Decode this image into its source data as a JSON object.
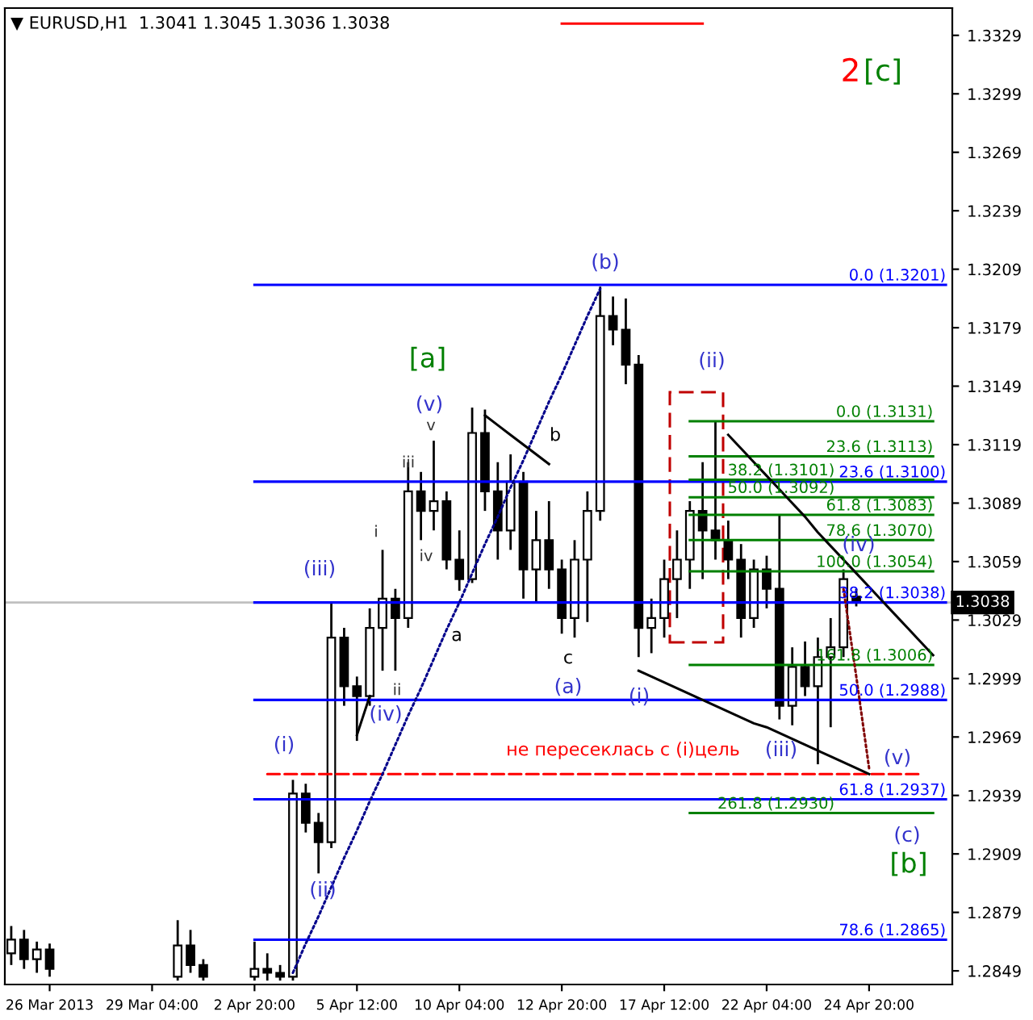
{
  "chart_data": {
    "type": "candlestick",
    "title": "▼ EURUSD,H1  1.3041 1.3045 1.3036 1.3038",
    "color": "#000000",
    "categories": [
      null,
      null,
      null,
      "26 Mar 2013",
      null,
      null,
      null,
      null,
      null,
      null,
      null,
      "29 Mar 04:00",
      null,
      null,
      null,
      null,
      null,
      null,
      null,
      "2 Apr 20:00",
      null,
      null,
      null,
      null,
      null,
      null,
      null,
      "5 Apr 12:00",
      null,
      null,
      null,
      null,
      null,
      null,
      null,
      "10 Apr 04:00",
      null,
      null,
      null,
      null,
      null,
      null,
      null,
      "12 Apr 20:00",
      null,
      null,
      null,
      null,
      null,
      null,
      null,
      "17 Apr 12:00",
      null,
      null,
      null,
      null,
      null,
      null,
      null,
      "22 Apr 04:00",
      null,
      null,
      null,
      null,
      null,
      null,
      null,
      "24 Apr 20:00",
      null,
      null,
      null,
      null,
      null,
      null
    ],
    "ohlc": [
      [
        1.2858,
        1.2872,
        1.2852,
        1.2865
      ],
      [
        1.2865,
        1.287,
        1.285,
        1.2855
      ],
      [
        1.2855,
        1.2864,
        1.2848,
        1.286
      ],
      [
        1.286,
        1.2863,
        1.2846,
        1.285
      ],
      null,
      null,
      null,
      null,
      null,
      null,
      null,
      null,
      null,
      [
        1.2846,
        1.2875,
        1.2844,
        1.2862
      ],
      [
        1.2862,
        1.287,
        1.2848,
        1.2852
      ],
      [
        1.2852,
        1.2855,
        1.2844,
        1.2846
      ],
      null,
      null,
      null,
      [
        1.2846,
        1.2864,
        1.2844,
        1.285
      ],
      [
        1.285,
        1.2858,
        1.2844,
        1.2848
      ],
      [
        1.2848,
        1.2852,
        1.2844,
        1.2846
      ],
      [
        1.2846,
        1.2947,
        1.2844,
        1.294
      ],
      [
        1.294,
        1.2945,
        1.292,
        1.2925
      ],
      [
        1.2925,
        1.293,
        1.2899,
        1.2915
      ],
      [
        1.2915,
        1.3038,
        1.2912,
        1.302
      ],
      [
        1.302,
        1.3025,
        1.2985,
        1.2995
      ],
      [
        1.2995,
        1.3,
        1.2967,
        1.299
      ],
      [
        1.299,
        1.3035,
        1.2985,
        1.3025
      ],
      [
        1.3025,
        1.3065,
        1.3003,
        1.304
      ],
      [
        1.304,
        1.3045,
        1.3003,
        1.303
      ],
      [
        1.303,
        1.311,
        1.3025,
        1.3095
      ],
      [
        1.3095,
        1.3105,
        1.307,
        1.3085
      ],
      [
        1.3085,
        1.3121,
        1.3075,
        1.309
      ],
      [
        1.309,
        1.3095,
        1.3055,
        1.306
      ],
      [
        1.306,
        1.3075,
        1.3044,
        1.305
      ],
      [
        1.305,
        1.3138,
        1.3048,
        1.3125
      ],
      [
        1.3125,
        1.3137,
        1.3085,
        1.3095
      ],
      [
        1.3095,
        1.311,
        1.306,
        1.3075
      ],
      [
        1.3075,
        1.3114,
        1.3065,
        1.31
      ],
      [
        1.31,
        1.3105,
        1.304,
        1.3055
      ],
      [
        1.3055,
        1.3085,
        1.3038,
        1.307
      ],
      [
        1.307,
        1.309,
        1.3045,
        1.3055
      ],
      [
        1.3055,
        1.306,
        1.3022,
        1.303
      ],
      [
        1.303,
        1.307,
        1.302,
        1.306
      ],
      [
        1.306,
        1.3095,
        1.3028,
        1.3085
      ],
      [
        1.3085,
        1.32,
        1.308,
        1.3185
      ],
      [
        1.3185,
        1.3195,
        1.317,
        1.3178
      ],
      [
        1.3178,
        1.3194,
        1.315,
        1.316
      ],
      [
        1.316,
        1.3165,
        1.301,
        1.3025
      ],
      [
        1.3025,
        1.304,
        1.3012,
        1.303
      ],
      [
        1.303,
        1.306,
        1.302,
        1.305
      ],
      [
        1.305,
        1.3075,
        1.303,
        1.306
      ],
      [
        1.306,
        1.309,
        1.3045,
        1.3085
      ],
      [
        1.3085,
        1.311,
        1.305,
        1.3075
      ],
      [
        1.3075,
        1.3131,
        1.306,
        1.307
      ],
      [
        1.307,
        1.308,
        1.305,
        1.306
      ],
      [
        1.306,
        1.3068,
        1.302,
        1.303
      ],
      [
        1.303,
        1.306,
        1.3025,
        1.3055
      ],
      [
        1.3055,
        1.3062,
        1.3035,
        1.3045
      ],
      [
        1.3045,
        1.3083,
        1.2978,
        1.2985
      ],
      [
        1.2985,
        1.3015,
        1.2975,
        1.3005
      ],
      [
        1.3005,
        1.3018,
        1.299,
        1.2995
      ],
      [
        1.2995,
        1.302,
        1.2955,
        1.301
      ],
      [
        1.301,
        1.303,
        1.2974,
        1.3015
      ],
      [
        1.3015,
        1.3055,
        1.301,
        1.305
      ],
      [
        1.3041,
        1.3045,
        1.3036,
        1.3038
      ],
      null,
      null,
      null,
      null,
      null,
      null,
      null
    ],
    "series": [
      {
        "type": "line",
        "name": "0.0 (1.3201)",
        "color": "#0000ff",
        "values": [
          null,
          null,
          null,
          null,
          null,
          null,
          null,
          null,
          null,
          null,
          null,
          null,
          null,
          null,
          null,
          null,
          null,
          null,
          null,
          1.3201,
          1.3201,
          1.3201,
          1.3201,
          1.3201,
          1.3201,
          1.3201,
          1.3201,
          1.3201,
          1.3201,
          1.3201,
          1.3201,
          1.3201,
          1.3201,
          1.3201,
          1.3201,
          1.3201,
          1.3201,
          1.3201,
          1.3201,
          1.3201,
          1.3201,
          1.3201,
          1.3201,
          1.3201,
          1.3201,
          1.3201,
          1.3201,
          1.3201,
          1.3201,
          1.3201,
          1.3201,
          1.3201,
          1.3201,
          1.3201,
          1.3201,
          1.3201,
          1.3201,
          1.3201,
          1.3201,
          1.3201,
          1.3201,
          1.3201,
          1.3201,
          1.3201,
          1.3201,
          1.3201,
          1.3201,
          1.3201,
          1.3201,
          1.3201,
          1.3201,
          1.3201,
          1.3201,
          1.3201
        ]
      },
      {
        "type": "line",
        "name": "23.6 (1.3100)",
        "color": "#0000ff",
        "values": [
          null,
          null,
          null,
          null,
          null,
          null,
          null,
          null,
          null,
          null,
          null,
          null,
          null,
          null,
          null,
          null,
          null,
          null,
          null,
          1.31,
          1.31,
          1.31,
          1.31,
          1.31,
          1.31,
          1.31,
          1.31,
          1.31,
          1.31,
          1.31,
          1.31,
          1.31,
          1.31,
          1.31,
          1.31,
          1.31,
          1.31,
          1.31,
          1.31,
          1.31,
          1.31,
          1.31,
          1.31,
          1.31,
          1.31,
          1.31,
          1.31,
          1.31,
          1.31,
          1.31,
          1.31,
          1.31,
          1.31,
          1.31,
          1.31,
          1.31,
          1.31,
          1.31,
          1.31,
          1.31,
          1.31,
          1.31,
          1.31,
          1.31,
          1.31,
          1.31,
          1.31,
          1.31,
          1.31,
          1.31,
          1.31,
          1.31,
          1.31,
          1.31
        ]
      },
      {
        "type": "line",
        "name": "38.2 (1.3038)",
        "color": "#0000ff",
        "values": [
          null,
          null,
          null,
          null,
          null,
          null,
          null,
          null,
          null,
          null,
          null,
          null,
          null,
          null,
          null,
          null,
          null,
          null,
          null,
          1.3038,
          1.3038,
          1.3038,
          1.3038,
          1.3038,
          1.3038,
          1.3038,
          1.3038,
          1.3038,
          1.3038,
          1.3038,
          1.3038,
          1.3038,
          1.3038,
          1.3038,
          1.3038,
          1.3038,
          1.3038,
          1.3038,
          1.3038,
          1.3038,
          1.3038,
          1.3038,
          1.3038,
          1.3038,
          1.3038,
          1.3038,
          1.3038,
          1.3038,
          1.3038,
          1.3038,
          1.3038,
          1.3038,
          1.3038,
          1.3038,
          1.3038,
          1.3038,
          1.3038,
          1.3038,
          1.3038,
          1.3038,
          1.3038,
          1.3038,
          1.3038,
          1.3038,
          1.3038,
          1.3038,
          1.3038,
          1.3038,
          1.3038,
          1.3038,
          1.3038,
          1.3038,
          1.3038,
          1.3038
        ]
      },
      {
        "type": "line",
        "name": "50.0 (1.2988)",
        "color": "#0000ff",
        "values": [
          null,
          null,
          null,
          null,
          null,
          null,
          null,
          null,
          null,
          null,
          null,
          null,
          null,
          null,
          null,
          null,
          null,
          null,
          null,
          1.2988,
          1.2988,
          1.2988,
          1.2988,
          1.2988,
          1.2988,
          1.2988,
          1.2988,
          1.2988,
          1.2988,
          1.2988,
          1.2988,
          1.2988,
          1.2988,
          1.2988,
          1.2988,
          1.2988,
          1.2988,
          1.2988,
          1.2988,
          1.2988,
          1.2988,
          1.2988,
          1.2988,
          1.2988,
          1.2988,
          1.2988,
          1.2988,
          1.2988,
          1.2988,
          1.2988,
          1.2988,
          1.2988,
          1.2988,
          1.2988,
          1.2988,
          1.2988,
          1.2988,
          1.2988,
          1.2988,
          1.2988,
          1.2988,
          1.2988,
          1.2988,
          1.2988,
          1.2988,
          1.2988,
          1.2988,
          1.2988,
          1.2988,
          1.2988,
          1.2988,
          1.2988,
          1.2988,
          1.2988
        ]
      },
      {
        "type": "line",
        "name": "61.8 (1.2937)",
        "color": "#0000ff",
        "values": [
          null,
          null,
          null,
          null,
          null,
          null,
          null,
          null,
          null,
          null,
          null,
          null,
          null,
          null,
          null,
          null,
          null,
          null,
          null,
          1.2937,
          1.2937,
          1.2937,
          1.2937,
          1.2937,
          1.2937,
          1.2937,
          1.2937,
          1.2937,
          1.2937,
          1.2937,
          1.2937,
          1.2937,
          1.2937,
          1.2937,
          1.2937,
          1.2937,
          1.2937,
          1.2937,
          1.2937,
          1.2937,
          1.2937,
          1.2937,
          1.2937,
          1.2937,
          1.2937,
          1.2937,
          1.2937,
          1.2937,
          1.2937,
          1.2937,
          1.2937,
          1.2937,
          1.2937,
          1.2937,
          1.2937,
          1.2937,
          1.2937,
          1.2937,
          1.2937,
          1.2937,
          1.2937,
          1.2937,
          1.2937,
          1.2937,
          1.2937,
          1.2937,
          1.2937,
          1.2937,
          1.2937,
          1.2937,
          1.2937,
          1.2937,
          1.2937,
          1.2937
        ]
      },
      {
        "type": "line",
        "name": "78.6 (1.2865)",
        "color": "#0000ff",
        "values": [
          null,
          null,
          null,
          null,
          null,
          null,
          null,
          null,
          null,
          null,
          null,
          null,
          null,
          null,
          null,
          null,
          null,
          null,
          null,
          1.2865,
          1.2865,
          1.2865,
          1.2865,
          1.2865,
          1.2865,
          1.2865,
          1.2865,
          1.2865,
          1.2865,
          1.2865,
          1.2865,
          1.2865,
          1.2865,
          1.2865,
          1.2865,
          1.2865,
          1.2865,
          1.2865,
          1.2865,
          1.2865,
          1.2865,
          1.2865,
          1.2865,
          1.2865,
          1.2865,
          1.2865,
          1.2865,
          1.2865,
          1.2865,
          1.2865,
          1.2865,
          1.2865,
          1.2865,
          1.2865,
          1.2865,
          1.2865,
          1.2865,
          1.2865,
          1.2865,
          1.2865,
          1.2865,
          1.2865,
          1.2865,
          1.2865,
          1.2865,
          1.2865,
          1.2865,
          1.2865,
          1.2865,
          1.2865,
          1.2865,
          1.2865,
          1.2865,
          1.2865
        ]
      },
      {
        "type": "line",
        "name": "0.0 (1.3131)",
        "color": "#008000",
        "values": [
          null,
          null,
          null,
          null,
          null,
          null,
          null,
          null,
          null,
          null,
          null,
          null,
          null,
          null,
          null,
          null,
          null,
          null,
          null,
          null,
          null,
          null,
          null,
          null,
          null,
          null,
          null,
          null,
          null,
          null,
          null,
          null,
          null,
          null,
          null,
          null,
          null,
          null,
          null,
          null,
          null,
          null,
          null,
          null,
          null,
          null,
          null,
          null,
          null,
          null,
          null,
          null,
          null,
          1.3131,
          1.3131,
          1.3131,
          1.3131,
          1.3131,
          1.3131,
          1.3131,
          1.3131,
          1.3131,
          1.3131,
          1.3131,
          1.3131,
          1.3131,
          1.3131,
          1.3131,
          1.3131,
          1.3131,
          1.3131,
          1.3131,
          1.3131,
          null
        ]
      },
      {
        "type": "line",
        "name": "23.6 (1.3113)",
        "color": "#008000",
        "values": [
          null,
          null,
          null,
          null,
          null,
          null,
          null,
          null,
          null,
          null,
          null,
          null,
          null,
          null,
          null,
          null,
          null,
          null,
          null,
          null,
          null,
          null,
          null,
          null,
          null,
          null,
          null,
          null,
          null,
          null,
          null,
          null,
          null,
          null,
          null,
          null,
          null,
          null,
          null,
          null,
          null,
          null,
          null,
          null,
          null,
          null,
          null,
          null,
          null,
          null,
          null,
          null,
          null,
          1.3113,
          1.3113,
          1.3113,
          1.3113,
          1.3113,
          1.3113,
          1.3113,
          1.3113,
          1.3113,
          1.3113,
          1.3113,
          1.3113,
          1.3113,
          1.3113,
          1.3113,
          1.3113,
          1.3113,
          1.3113,
          1.3113,
          1.3113,
          null
        ]
      },
      {
        "type": "line",
        "name": "38.2 (1.3101)",
        "color": "#008000",
        "values": [
          null,
          null,
          null,
          null,
          null,
          null,
          null,
          null,
          null,
          null,
          null,
          null,
          null,
          null,
          null,
          null,
          null,
          null,
          null,
          null,
          null,
          null,
          null,
          null,
          null,
          null,
          null,
          null,
          null,
          null,
          null,
          null,
          null,
          null,
          null,
          null,
          null,
          null,
          null,
          null,
          null,
          null,
          null,
          null,
          null,
          null,
          null,
          null,
          null,
          null,
          null,
          null,
          null,
          1.3101,
          1.3101,
          1.3101,
          1.3101,
          1.3101,
          1.3101,
          1.3101,
          1.3101,
          1.3101,
          1.3101,
          1.3101,
          1.3101,
          1.3101,
          1.3101,
          1.3101,
          1.3101,
          1.3101,
          1.3101,
          1.3101,
          1.3101,
          null
        ]
      },
      {
        "type": "line",
        "name": "50.0 (1.3092)",
        "color": "#008000",
        "values": [
          null,
          null,
          null,
          null,
          null,
          null,
          null,
          null,
          null,
          null,
          null,
          null,
          null,
          null,
          null,
          null,
          null,
          null,
          null,
          null,
          null,
          null,
          null,
          null,
          null,
          null,
          null,
          null,
          null,
          null,
          null,
          null,
          null,
          null,
          null,
          null,
          null,
          null,
          null,
          null,
          null,
          null,
          null,
          null,
          null,
          null,
          null,
          null,
          null,
          null,
          null,
          null,
          null,
          1.3092,
          1.3092,
          1.3092,
          1.3092,
          1.3092,
          1.3092,
          1.3092,
          1.3092,
          1.3092,
          1.3092,
          1.3092,
          1.3092,
          1.3092,
          1.3092,
          1.3092,
          1.3092,
          1.3092,
          1.3092,
          1.3092,
          1.3092,
          null
        ]
      },
      {
        "type": "line",
        "name": "61.8 (1.3083)",
        "color": "#008000",
        "values": [
          null,
          null,
          null,
          null,
          null,
          null,
          null,
          null,
          null,
          null,
          null,
          null,
          null,
          null,
          null,
          null,
          null,
          null,
          null,
          null,
          null,
          null,
          null,
          null,
          null,
          null,
          null,
          null,
          null,
          null,
          null,
          null,
          null,
          null,
          null,
          null,
          null,
          null,
          null,
          null,
          null,
          null,
          null,
          null,
          null,
          null,
          null,
          null,
          null,
          null,
          null,
          null,
          null,
          1.3083,
          1.3083,
          1.3083,
          1.3083,
          1.3083,
          1.3083,
          1.3083,
          1.3083,
          1.3083,
          1.3083,
          1.3083,
          1.3083,
          1.3083,
          1.3083,
          1.3083,
          1.3083,
          1.3083,
          1.3083,
          1.3083,
          1.3083,
          null
        ]
      },
      {
        "type": "line",
        "name": "78.6 (1.3070)",
        "color": "#008000",
        "values": [
          null,
          null,
          null,
          null,
          null,
          null,
          null,
          null,
          null,
          null,
          null,
          null,
          null,
          null,
          null,
          null,
          null,
          null,
          null,
          null,
          null,
          null,
          null,
          null,
          null,
          null,
          null,
          null,
          null,
          null,
          null,
          null,
          null,
          null,
          null,
          null,
          null,
          null,
          null,
          null,
          null,
          null,
          null,
          null,
          null,
          null,
          null,
          null,
          null,
          null,
          null,
          null,
          null,
          1.307,
          1.307,
          1.307,
          1.307,
          1.307,
          1.307,
          1.307,
          1.307,
          1.307,
          1.307,
          1.307,
          1.307,
          1.307,
          1.307,
          1.307,
          1.307,
          1.307,
          1.307,
          1.307,
          1.307,
          null
        ]
      },
      {
        "type": "line",
        "name": "100.0 (1.3054)",
        "color": "#008000",
        "values": [
          null,
          null,
          null,
          null,
          null,
          null,
          null,
          null,
          null,
          null,
          null,
          null,
          null,
          null,
          null,
          null,
          null,
          null,
          null,
          null,
          null,
          null,
          null,
          null,
          null,
          null,
          null,
          null,
          null,
          null,
          null,
          null,
          null,
          null,
          null,
          null,
          null,
          null,
          null,
          null,
          null,
          null,
          null,
          null,
          null,
          null,
          null,
          null,
          null,
          null,
          null,
          null,
          null,
          1.3054,
          1.3054,
          1.3054,
          1.3054,
          1.3054,
          1.3054,
          1.3054,
          1.3054,
          1.3054,
          1.3054,
          1.3054,
          1.3054,
          1.3054,
          1.3054,
          1.3054,
          1.3054,
          1.3054,
          1.3054,
          1.3054,
          1.3054,
          null
        ]
      },
      {
        "type": "line",
        "name": "161.8 (1.3006)",
        "color": "#008000",
        "values": [
          null,
          null,
          null,
          null,
          null,
          null,
          null,
          null,
          null,
          null,
          null,
          null,
          null,
          null,
          null,
          null,
          null,
          null,
          null,
          null,
          null,
          null,
          null,
          null,
          null,
          null,
          null,
          null,
          null,
          null,
          null,
          null,
          null,
          null,
          null,
          null,
          null,
          null,
          null,
          null,
          null,
          null,
          null,
          null,
          null,
          null,
          null,
          null,
          null,
          null,
          null,
          null,
          null,
          1.3006,
          1.3006,
          1.3006,
          1.3006,
          1.3006,
          1.3006,
          1.3006,
          1.3006,
          1.3006,
          1.3006,
          1.3006,
          1.3006,
          1.3006,
          1.3006,
          1.3006,
          1.3006,
          1.3006,
          1.3006,
          1.3006,
          1.3006,
          null
        ]
      },
      {
        "type": "line",
        "name": "261.8 (1.2930)",
        "color": "#008000",
        "values": [
          null,
          null,
          null,
          null,
          null,
          null,
          null,
          null,
          null,
          null,
          null,
          null,
          null,
          null,
          null,
          null,
          null,
          null,
          null,
          null,
          null,
          null,
          null,
          null,
          null,
          null,
          null,
          null,
          null,
          null,
          null,
          null,
          null,
          null,
          null,
          null,
          null,
          null,
          null,
          null,
          null,
          null,
          null,
          null,
          null,
          null,
          null,
          null,
          null,
          null,
          null,
          null,
          null,
          1.293,
          1.293,
          1.293,
          1.293,
          1.293,
          1.293,
          1.293,
          1.293,
          1.293,
          1.293,
          1.293,
          1.293,
          1.293,
          1.293,
          1.293,
          1.293,
          1.293,
          1.293,
          1.293,
          1.293,
          null
        ]
      },
      {
        "type": "line",
        "color": "#ff0000",
        "values": [
          null,
          null,
          null,
          null,
          null,
          null,
          null,
          null,
          null,
          null,
          null,
          null,
          null,
          null,
          null,
          null,
          null,
          null,
          null,
          null,
          null,
          null,
          null,
          null,
          null,
          null,
          null,
          null,
          null,
          null,
          null,
          null,
          null,
          null,
          null,
          null,
          null,
          null,
          null,
          null,
          null,
          null,
          null,
          1.3335,
          1.3335,
          1.3335,
          1.3335,
          1.3335,
          1.3335,
          1.3335,
          1.3335,
          1.3335,
          1.3335,
          1.3335,
          1.3335,
          null,
          null,
          null,
          null,
          null,
          null,
          null,
          null,
          null,
          null,
          null,
          null,
          null,
          null,
          null,
          null,
          null,
          null,
          null
        ]
      },
      {
        "type": "line",
        "color": "#ff0000",
        "line_style": "dashed",
        "values": [
          null,
          null,
          null,
          null,
          null,
          null,
          null,
          null,
          null,
          null,
          null,
          null,
          null,
          null,
          null,
          null,
          null,
          null,
          null,
          null,
          1.295,
          1.295,
          1.295,
          1.295,
          1.295,
          1.295,
          1.295,
          1.295,
          1.295,
          1.295,
          1.295,
          1.295,
          1.295,
          1.295,
          1.295,
          1.295,
          1.295,
          1.295,
          1.295,
          1.295,
          1.295,
          1.295,
          1.295,
          1.295,
          1.295,
          1.295,
          1.295,
          1.295,
          1.295,
          1.295,
          1.295,
          1.295,
          1.295,
          1.295,
          1.295,
          1.295,
          1.295,
          1.295,
          1.295,
          1.295,
          1.295,
          1.295,
          1.295,
          1.295,
          1.295,
          1.295,
          1.295,
          1.295,
          1.295,
          1.295,
          1.295,
          1.295,
          null,
          null
        ]
      },
      {
        "type": "line",
        "color": "#00008b",
        "line_style": "dotted",
        "values": [
          null,
          null,
          null,
          null,
          null,
          null,
          null,
          null,
          null,
          null,
          null,
          null,
          null,
          null,
          null,
          null,
          null,
          null,
          null,
          null,
          null,
          null,
          1.2848,
          1.2863,
          1.2877,
          1.2892,
          1.2907,
          1.2921,
          1.2936,
          1.295,
          1.2965,
          1.298,
          1.2994,
          1.3009,
          1.3024,
          1.3038,
          1.3053,
          1.3068,
          1.3082,
          1.3097,
          1.3111,
          1.3126,
          1.3141,
          1.3155,
          1.317,
          1.3185,
          1.3199,
          null,
          null,
          null,
          null,
          null,
          null,
          null,
          null,
          null,
          null,
          null,
          null,
          null,
          null,
          null,
          null,
          null,
          null,
          null,
          null,
          null,
          null,
          null,
          null,
          null,
          null,
          null
        ]
      },
      {
        "type": "line",
        "color": "#000000",
        "values": [
          null,
          null,
          null,
          null,
          null,
          null,
          null,
          null,
          null,
          null,
          null,
          null,
          null,
          null,
          null,
          null,
          null,
          null,
          null,
          null,
          null,
          null,
          null,
          null,
          null,
          null,
          null,
          1.297,
          1.299,
          null,
          null,
          null,
          null,
          null,
          null,
          null,
          null,
          null,
          null,
          null,
          null,
          null,
          null,
          null,
          null,
          null,
          null,
          null,
          null,
          null,
          null,
          null,
          null,
          null,
          null,
          null,
          null,
          null,
          null,
          null,
          null,
          null,
          null,
          null,
          null,
          null,
          null,
          null,
          null,
          null,
          null,
          null,
          null,
          null
        ]
      },
      {
        "type": "line",
        "color": "#000000",
        "values": [
          null,
          null,
          null,
          null,
          null,
          null,
          null,
          null,
          null,
          null,
          null,
          null,
          null,
          null,
          null,
          null,
          null,
          null,
          null,
          null,
          null,
          null,
          null,
          null,
          null,
          null,
          null,
          null,
          null,
          null,
          null,
          null,
          null,
          null,
          null,
          null,
          null,
          1.3134,
          1.3129,
          1.3124,
          1.3119,
          1.3114,
          1.3109,
          null,
          null,
          null,
          null,
          null,
          null,
          null,
          null,
          null,
          null,
          null,
          null,
          null,
          null,
          null,
          null,
          null,
          null,
          null,
          null,
          null,
          null,
          null,
          null,
          null,
          null,
          null,
          null,
          null,
          null,
          null
        ]
      },
      {
        "type": "line",
        "color": "#000000",
        "values": [
          null,
          null,
          null,
          null,
          null,
          null,
          null,
          null,
          null,
          null,
          null,
          null,
          null,
          null,
          null,
          null,
          null,
          null,
          null,
          null,
          null,
          null,
          null,
          null,
          null,
          null,
          null,
          null,
          null,
          null,
          null,
          null,
          null,
          null,
          null,
          null,
          null,
          null,
          null,
          null,
          null,
          null,
          null,
          null,
          null,
          null,
          null,
          null,
          null,
          1.3003,
          1.3,
          1.2997,
          1.2994,
          1.2991,
          1.2988,
          1.2985,
          1.2982,
          1.2979,
          1.2976,
          1.2974,
          1.2971,
          1.2968,
          1.2965,
          1.2962,
          1.2959,
          1.2956,
          1.2953,
          1.295,
          null,
          null,
          null,
          null,
          null,
          null
        ]
      },
      {
        "type": "line",
        "color": "#000000",
        "values": [
          null,
          null,
          null,
          null,
          null,
          null,
          null,
          null,
          null,
          null,
          null,
          null,
          null,
          null,
          null,
          null,
          null,
          null,
          null,
          null,
          null,
          null,
          null,
          null,
          null,
          null,
          null,
          null,
          null,
          null,
          null,
          null,
          null,
          null,
          null,
          null,
          null,
          null,
          null,
          null,
          null,
          null,
          null,
          null,
          null,
          null,
          null,
          null,
          null,
          null,
          null,
          null,
          null,
          null,
          null,
          null,
          1.3124,
          1.3117,
          1.311,
          1.3103,
          1.3096,
          1.3089,
          1.3082,
          1.3074,
          1.3067,
          1.306,
          1.3053,
          1.3046,
          1.3039,
          1.3032,
          1.3025,
          1.3018,
          1.3011,
          null
        ]
      },
      {
        "type": "line",
        "color": "#800000",
        "line_style": "dotted",
        "values": [
          null,
          null,
          null,
          null,
          null,
          null,
          null,
          null,
          null,
          null,
          null,
          null,
          null,
          null,
          null,
          null,
          null,
          null,
          null,
          null,
          null,
          null,
          null,
          null,
          null,
          null,
          null,
          null,
          null,
          null,
          null,
          null,
          null,
          null,
          null,
          null,
          null,
          null,
          null,
          null,
          null,
          null,
          null,
          null,
          null,
          null,
          null,
          null,
          null,
          null,
          null,
          null,
          null,
          null,
          null,
          null,
          null,
          null,
          null,
          null,
          null,
          null,
          null,
          null,
          null,
          1.3045,
          1.3,
          1.2953,
          null,
          null,
          null,
          null,
          null,
          null
        ]
      }
    ],
    "ref_lines": [
      {
        "axis": "y",
        "value": 1.3038,
        "label": "1.3038",
        "color": "#c0c0c0"
      }
    ],
    "annotations": [
      "2",
      "[c]",
      "(b)",
      "[a]",
      "(v)",
      "v",
      "iii",
      "i",
      "iv",
      "(iii)",
      "ii",
      "(iv)",
      "a",
      "b",
      "c",
      "(a)",
      "(i)",
      "(i)",
      "(ii)",
      "(ii)",
      "(iii)",
      "(iv)",
      "(v)",
      "(c)",
      "[b]",
      "не пересеклась с (i)цель"
    ],
    "ylim": [
      1.2842,
      1.3343
    ],
    "yticks": [
      1.2849,
      1.2879,
      1.2909,
      1.2939,
      1.2969,
      1.2999,
      1.3029,
      1.3059,
      1.3089,
      1.3119,
      1.3149,
      1.3179,
      1.3209,
      1.3239,
      1.3269,
      1.3299,
      1.3329
    ]
  }
}
